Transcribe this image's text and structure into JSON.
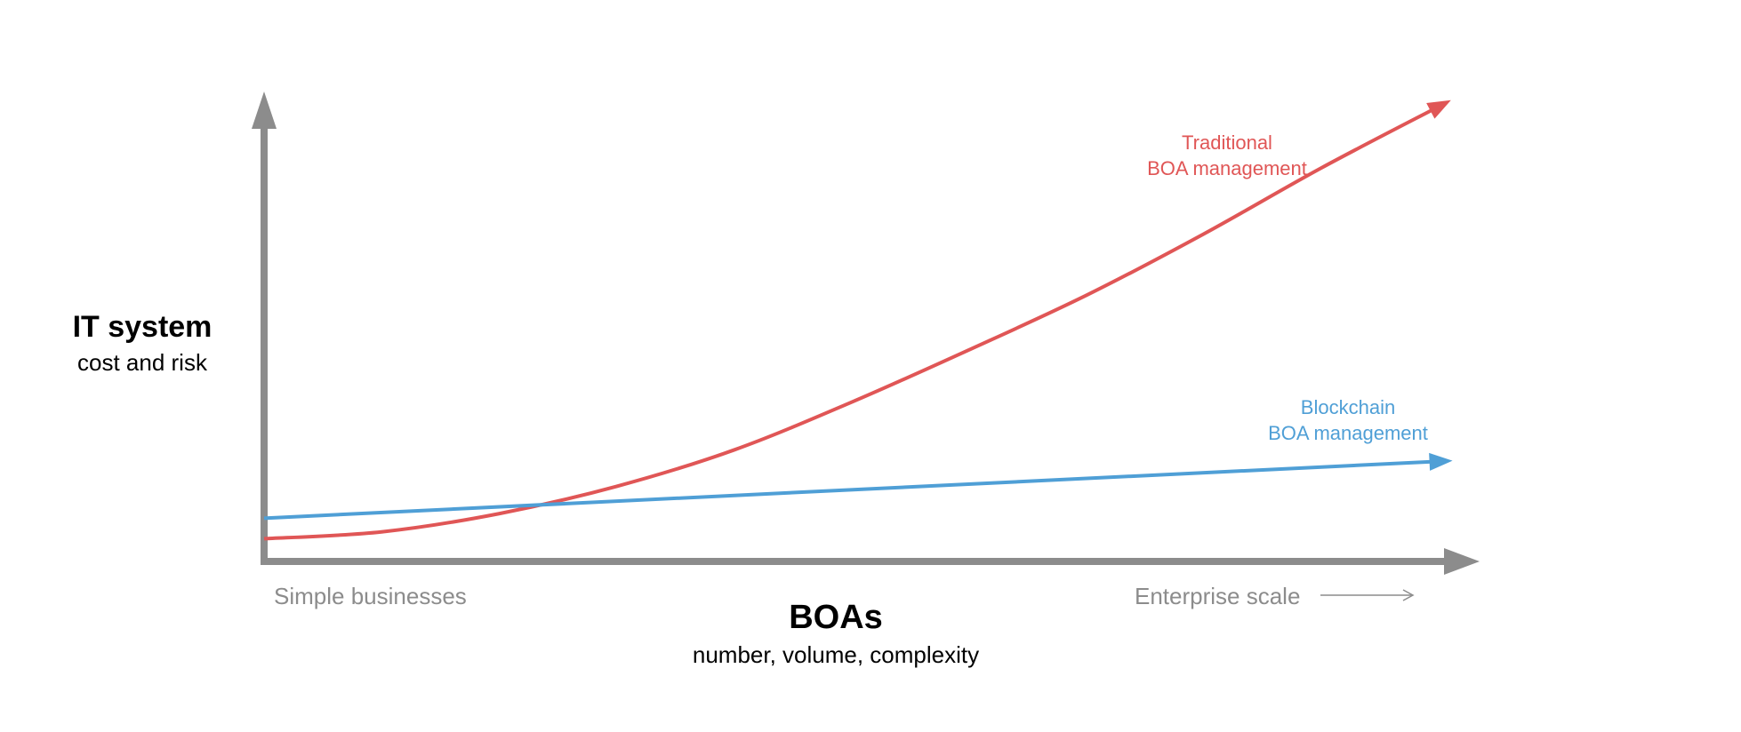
{
  "chart_data": {
    "type": "line",
    "y_axis": {
      "title": "IT system",
      "subtitle": "cost and risk"
    },
    "x_axis": {
      "title": "BOAs",
      "subtitle": "number, volume, complexity",
      "left_label": "Simple businesses",
      "right_label": "Enterprise scale"
    },
    "series": [
      {
        "name": "Traditional BOA management",
        "label_lines": [
          "Traditional",
          "BOA management"
        ],
        "color": "#e05656",
        "trend": "exponential",
        "x": [
          0,
          0.1,
          0.2,
          0.3,
          0.4,
          0.5,
          0.6,
          0.7,
          0.8,
          0.9,
          1.0
        ],
        "y": [
          0.05,
          0.065,
          0.105,
          0.165,
          0.245,
          0.35,
          0.465,
          0.585,
          0.72,
          0.865,
          1.0
        ]
      },
      {
        "name": "Blockchain BOA management",
        "label_lines": [
          "Blockchain",
          "BOA management"
        ],
        "color": "#4f9fd6",
        "trend": "linear",
        "x": [
          0,
          1.0
        ],
        "y": [
          0.095,
          0.22
        ]
      }
    ],
    "axis_color": "#8c8c8c",
    "arrow_color": "#8c8c8c"
  }
}
